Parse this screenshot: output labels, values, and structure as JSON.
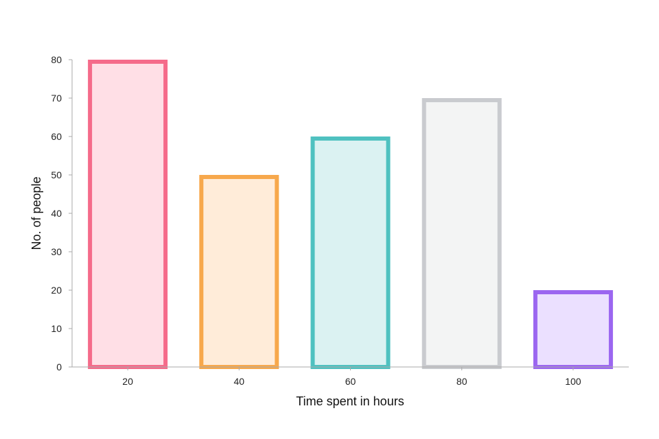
{
  "chart_data": {
    "type": "bar",
    "categories": [
      "20",
      "40",
      "60",
      "80",
      "100"
    ],
    "values": [
      80,
      50,
      60,
      70,
      20
    ],
    "xlabel": "Time spent in hours",
    "ylabel": "No. of people",
    "ylim": [
      0,
      80
    ],
    "yticks": [
      0,
      10,
      20,
      30,
      40,
      50,
      60,
      70,
      80
    ],
    "grid": false,
    "legend": "none",
    "colors": {
      "border": [
        "#f56b8a",
        "#f7a84c",
        "#4fc1c0",
        "#c9cbcf",
        "#9b66f0"
      ],
      "fill": [
        "#ffdfe6",
        "#ffecd9",
        "#dbf2f2",
        "#f3f4f4",
        "#ebe0ff"
      ],
      "axis": "#aaaaaa"
    }
  }
}
